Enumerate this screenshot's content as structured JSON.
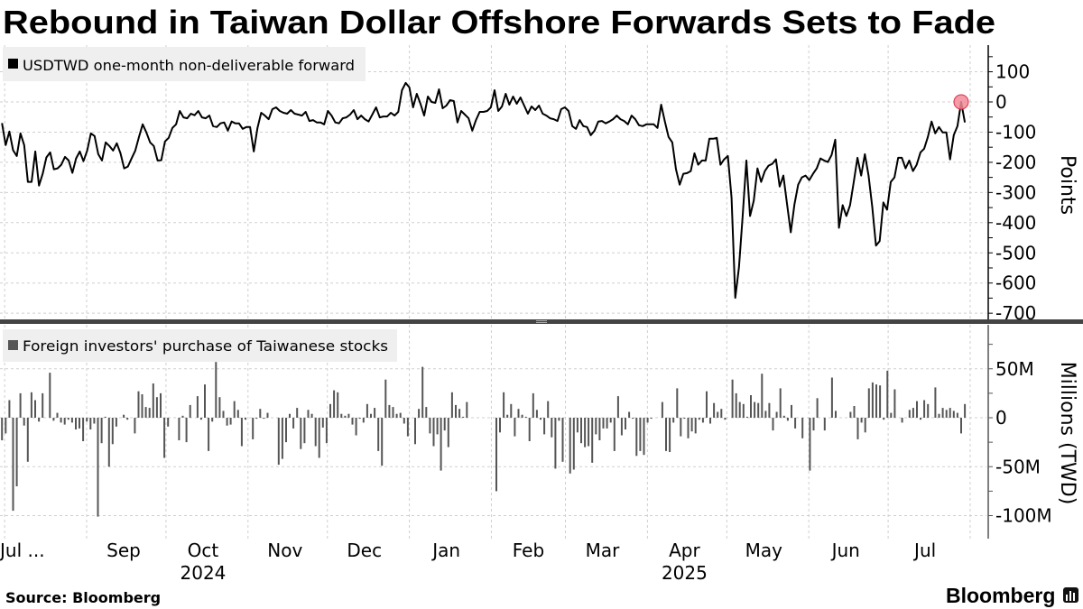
{
  "title": "Rebound in Taiwan Dollar Offshore Forwards Sets to Fade",
  "footer": {
    "source": "Source: Bloomberg",
    "logo": "Bloomberg"
  },
  "x_axis": {
    "months": [
      {
        "label": "Jul ...",
        "month": "2024-07"
      },
      {
        "label": "Sep",
        "month": "2024-09"
      },
      {
        "label": "Oct",
        "month": "2024-10"
      },
      {
        "label": "Nov",
        "month": "2024-11"
      },
      {
        "label": "Dec",
        "month": "2024-12"
      },
      {
        "label": "Jan",
        "month": "2025-01"
      },
      {
        "label": "Feb",
        "month": "2025-02"
      },
      {
        "label": "Mar",
        "month": "2025-03"
      },
      {
        "label": "Apr",
        "month": "2025-04"
      },
      {
        "label": "May",
        "month": "2025-05"
      },
      {
        "label": "Jun",
        "month": "2025-06"
      },
      {
        "label": "Jul",
        "month": "2025-07"
      }
    ],
    "years": [
      {
        "label": "2024",
        "month": "2024-10"
      },
      {
        "label": "2025",
        "month": "2025-04"
      }
    ],
    "range": [
      "2024-07-31",
      "2025-08-05"
    ]
  },
  "chart_data": [
    {
      "type": "line",
      "legend": "USDTWD one-month non-deliverable forward",
      "legend_position": "top-left",
      "ylabel": "Points",
      "ylim": [
        -720,
        160
      ],
      "yticks": [
        {
          "value": 100,
          "label": "100"
        },
        {
          "value": 0,
          "label": "0"
        },
        {
          "value": -100,
          "label": "-100"
        },
        {
          "value": -200,
          "label": "-200"
        },
        {
          "value": -300,
          "label": "-300"
        },
        {
          "value": -400,
          "label": "-400"
        },
        {
          "value": -500,
          "label": "-500"
        },
        {
          "value": -600,
          "label": "-600"
        },
        {
          "value": -700,
          "label": "-700"
        }
      ],
      "grid": true,
      "color": "#000000",
      "x_start": "2024-07-31",
      "x_end": "2025-07-30",
      "frequency": "business-daily",
      "highlight": {
        "value": 0,
        "color": "#f28b98",
        "stroke": "#d9304a"
      },
      "values": [
        -70,
        -143,
        -98,
        -160,
        -179,
        -104,
        -143,
        -265,
        -265,
        -164,
        -277,
        -238,
        -184,
        -167,
        -223,
        -220,
        -208,
        -182,
        -194,
        -235,
        -187,
        -164,
        -196,
        -161,
        -104,
        -113,
        -173,
        -194,
        -134,
        -146,
        -161,
        -137,
        -170,
        -220,
        -214,
        -187,
        -161,
        -116,
        -74,
        -101,
        -134,
        -146,
        -194,
        -193,
        -131,
        -119,
        -86,
        -74,
        -30,
        -51,
        -54,
        -39,
        -44,
        -30,
        -51,
        -54,
        -45,
        -80,
        -83,
        -71,
        -68,
        -95,
        -65,
        -71,
        -71,
        -89,
        -83,
        -83,
        -164,
        -86,
        -36,
        -45,
        -57,
        -24,
        -18,
        -30,
        -36,
        -39,
        -27,
        -39,
        -42,
        -45,
        -33,
        -63,
        -60,
        -68,
        -68,
        -74,
        -30,
        -45,
        -68,
        -71,
        -54,
        -51,
        -42,
        -27,
        -57,
        -45,
        -57,
        -65,
        -42,
        -18,
        -51,
        -48,
        -48,
        -36,
        -45,
        -33,
        39,
        63,
        48,
        -18,
        27,
        -6,
        -45,
        18,
        0,
        -3,
        42,
        -21,
        -12,
        6,
        3,
        -68,
        -30,
        -42,
        -54,
        -95,
        -60,
        -33,
        -33,
        -30,
        -18,
        39,
        -30,
        -15,
        27,
        -9,
        18,
        -6,
        15,
        -12,
        -39,
        -15,
        -27,
        -12,
        -39,
        -45,
        -54,
        -57,
        -63,
        -24,
        -18,
        -30,
        -80,
        -89,
        -60,
        -80,
        -83,
        -110,
        -95,
        -65,
        -63,
        -71,
        -65,
        -57,
        -45,
        -57,
        -63,
        -74,
        -45,
        -57,
        -77,
        -80,
        -74,
        -74,
        -74,
        -86,
        -9,
        -65,
        -116,
        -134,
        -223,
        -274,
        -238,
        -236,
        -229,
        -170,
        -208,
        -194,
        -194,
        -122,
        -122,
        -119,
        -208,
        -190,
        -179,
        -318,
        -649,
        -548,
        -378,
        -194,
        -378,
        -327,
        -220,
        -265,
        -229,
        -211,
        -205,
        -190,
        -280,
        -244,
        -339,
        -432,
        -339,
        -274,
        -250,
        -244,
        -259,
        -238,
        -220,
        -187,
        -194,
        -199,
        -176,
        -125,
        -417,
        -342,
        -378,
        -342,
        -265,
        -185,
        -244,
        -173,
        -244,
        -348,
        -476,
        -461,
        -333,
        -357,
        -265,
        -250,
        -185,
        -185,
        -220,
        -194,
        -229,
        -208,
        -167,
        -155,
        -116,
        -65,
        -104,
        -83,
        -101,
        -101,
        -190,
        -110,
        -80,
        0,
        -68
      ]
    },
    {
      "type": "bar",
      "legend": "Foreign investors' purchase of Taiwanese stocks",
      "legend_position": "top-left",
      "ylabel": "Millions (TWD)",
      "ylim": [
        -122,
        93
      ],
      "yticks": [
        {
          "value": 50,
          "label": "50M"
        },
        {
          "value": 0,
          "label": "0"
        },
        {
          "value": -50,
          "label": "-50M"
        },
        {
          "value": -100,
          "label": "-100M"
        }
      ],
      "grid": true,
      "color": "#555555",
      "x_start": "2024-07-31",
      "x_end": "2025-07-30",
      "frequency": "business-daily",
      "values": [
        -23,
        -16,
        18,
        -95,
        -70,
        25,
        -8,
        -45,
        26,
        18,
        -4,
        25,
        0,
        46,
        -3,
        5,
        -5,
        -7,
        -2,
        -5,
        -12,
        -11,
        -24,
        -4,
        -12,
        -6,
        -101,
        -26,
        1,
        -50,
        -27,
        -9,
        0,
        3,
        -2,
        0,
        -16,
        27,
        24,
        11,
        10,
        35,
        21,
        25,
        -41,
        -9,
        0,
        0,
        -23,
        2,
        -25,
        13,
        0,
        22,
        -2,
        34,
        -34,
        -4,
        57,
        21,
        7,
        -8,
        -7,
        17,
        8,
        -29,
        -2,
        0,
        -22,
        -1,
        9,
        -1,
        5,
        0,
        0,
        -48,
        -42,
        -25,
        4,
        -11,
        10,
        -32,
        -26,
        8,
        4,
        -29,
        -41,
        -10,
        -26,
        14,
        28,
        26,
        4,
        2,
        4,
        -7,
        -18,
        -1,
        -5,
        14,
        4,
        10,
        -34,
        -49,
        39,
        13,
        11,
        4,
        5,
        -6,
        -19,
        0,
        -27,
        9,
        52,
        11,
        -16,
        -29,
        -17,
        -54,
        -13,
        -30,
        26,
        13,
        9,
        1,
        16,
        0,
        0,
        0,
        0,
        0,
        0,
        0,
        -75,
        -15,
        26,
        3,
        14,
        -19,
        9,
        3,
        1,
        -24,
        25,
        8,
        -2,
        -17,
        17,
        -20,
        -52,
        -3,
        -45,
        0,
        -57,
        -53,
        -15,
        -26,
        -30,
        -29,
        -46,
        -17,
        -23,
        -11,
        -11,
        -5,
        -34,
        22,
        -18,
        -12,
        6,
        -1,
        -39,
        -34,
        -38,
        -5,
        -1,
        0,
        0,
        16,
        -34,
        -35,
        -5,
        30,
        -19,
        -1,
        -21,
        -14,
        -16,
        -2,
        -5,
        27,
        -6,
        15,
        6,
        9,
        -2,
        0,
        39,
        25,
        16,
        14,
        1,
        23,
        16,
        15,
        45,
        7,
        15,
        -13,
        6,
        30,
        2,
        -3,
        13,
        -11,
        0,
        -21,
        0,
        -54,
        -13,
        20,
        0,
        -13,
        0,
        41,
        7,
        0,
        0,
        0,
        6,
        12,
        -22,
        -5,
        -15,
        30,
        36,
        34,
        33,
        -2,
        48,
        5,
        29,
        0,
        -5,
        0,
        8,
        10,
        17,
        -2,
        18,
        14,
        0,
        31,
        4,
        10,
        8,
        10,
        7,
        5,
        -16,
        14
      ]
    }
  ]
}
